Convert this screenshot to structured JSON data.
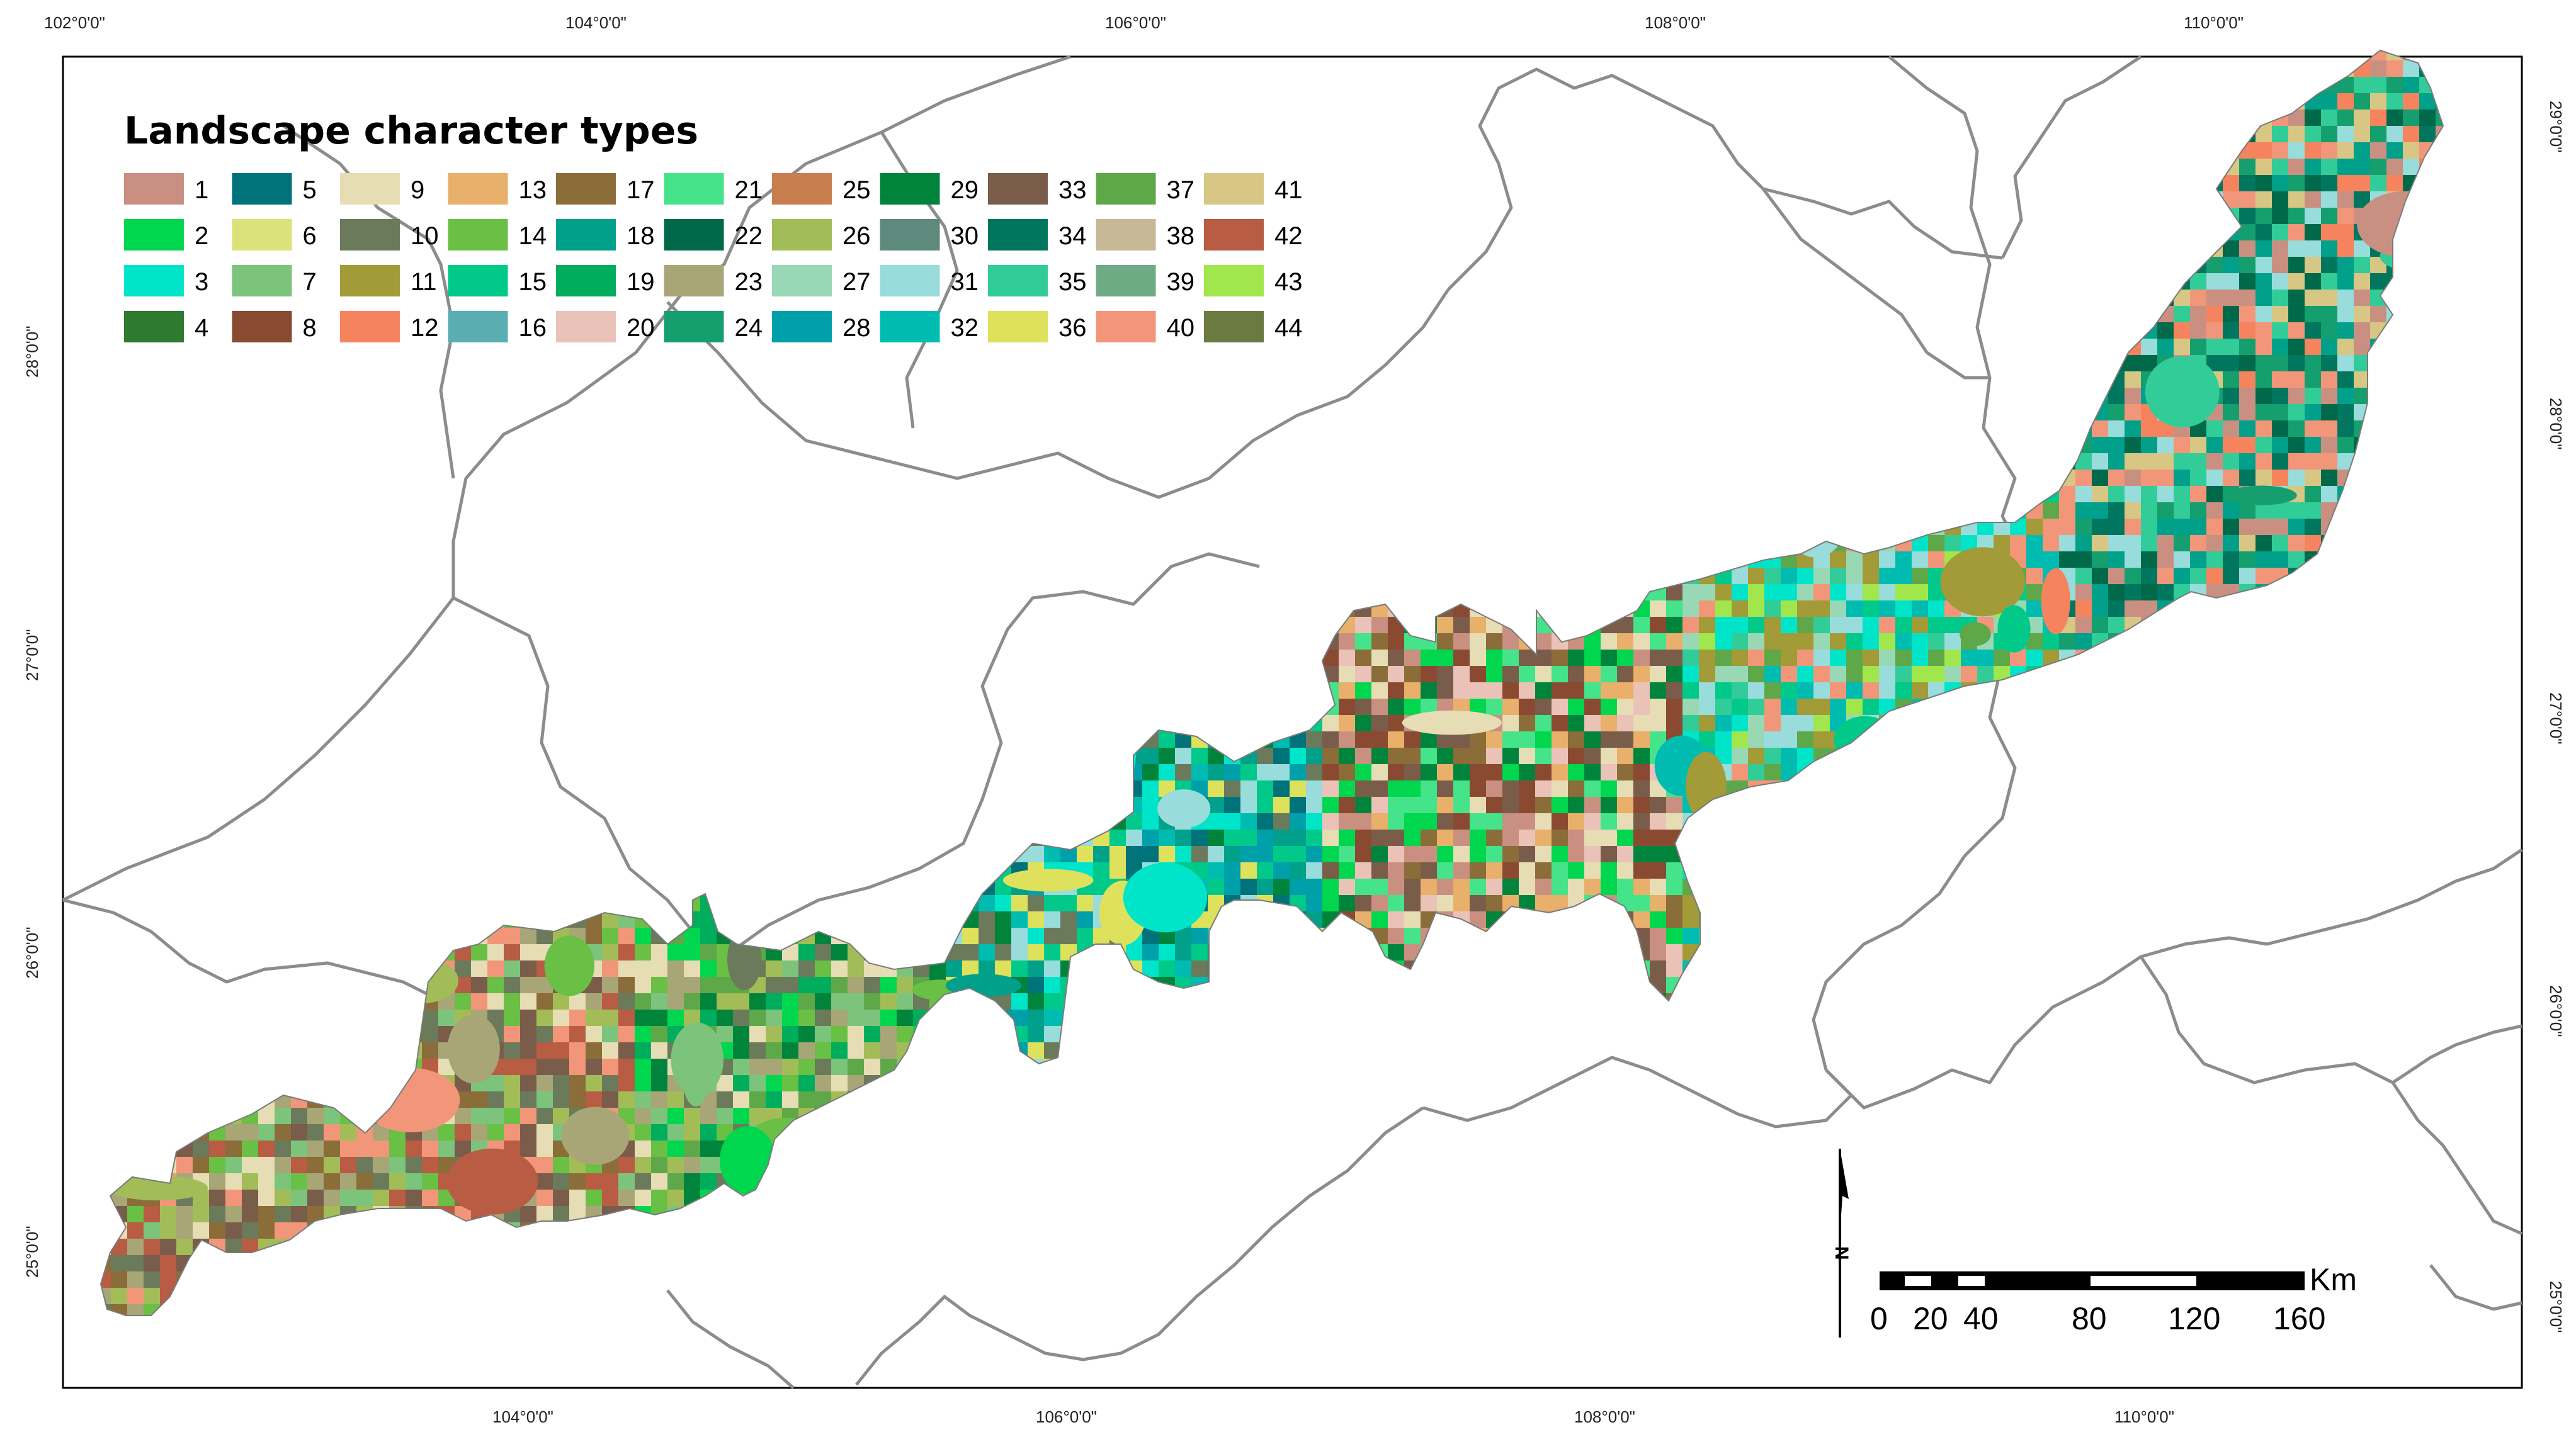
{
  "map": {
    "legend_title": "Landscape character types",
    "legend_items": [
      {
        "label": "1",
        "color": "#C99082"
      },
      {
        "label": "2",
        "color": "#00D64E"
      },
      {
        "label": "3",
        "color": "#00E5C9"
      },
      {
        "label": "4",
        "color": "#2E7A2E"
      },
      {
        "label": "5",
        "color": "#00727A"
      },
      {
        "label": "6",
        "color": "#DCE27A"
      },
      {
        "label": "7",
        "color": "#7CC47C"
      },
      {
        "label": "8",
        "color": "#8A4A32"
      },
      {
        "label": "9",
        "color": "#E6DDB5"
      },
      {
        "label": "10",
        "color": "#6B7A5A"
      },
      {
        "label": "11",
        "color": "#A39A38"
      },
      {
        "label": "12",
        "color": "#F5845E"
      },
      {
        "label": "13",
        "color": "#E8B06A"
      },
      {
        "label": "14",
        "color": "#6ABF45"
      },
      {
        "label": "15",
        "color": "#00C98A"
      },
      {
        "label": "16",
        "color": "#5AAEB2"
      },
      {
        "label": "17",
        "color": "#8A6D38"
      },
      {
        "label": "18",
        "color": "#00A08A"
      },
      {
        "label": "19",
        "color": "#00AD5C"
      },
      {
        "label": "20",
        "color": "#EBC2B8"
      },
      {
        "label": "21",
        "color": "#45E38A"
      },
      {
        "label": "22",
        "color": "#00694A"
      },
      {
        "label": "23",
        "color": "#A8A676"
      },
      {
        "label": "24",
        "color": "#159E6E"
      },
      {
        "label": "25",
        "color": "#C87E4E"
      },
      {
        "label": "26",
        "color": "#A2BD58"
      },
      {
        "label": "27",
        "color": "#98D8B4"
      },
      {
        "label": "28",
        "color": "#00A0AA"
      },
      {
        "label": "29",
        "color": "#00843C"
      },
      {
        "label": "30",
        "color": "#5E8A7E"
      },
      {
        "label": "31",
        "color": "#98DCDC"
      },
      {
        "label": "32",
        "color": "#00BCB0"
      },
      {
        "label": "33",
        "color": "#7A5C4A"
      },
      {
        "label": "34",
        "color": "#00765E"
      },
      {
        "label": "35",
        "color": "#32CC98"
      },
      {
        "label": "36",
        "color": "#DDE15C"
      },
      {
        "label": "37",
        "color": "#5EA84A"
      },
      {
        "label": "38",
        "color": "#C7B896"
      },
      {
        "label": "39",
        "color": "#6EAA84"
      },
      {
        "label": "40",
        "color": "#F2967A"
      },
      {
        "label": "41",
        "color": "#D8C684"
      },
      {
        "label": "42",
        "color": "#B85C44"
      },
      {
        "label": "43",
        "color": "#A2E64E"
      },
      {
        "label": "44",
        "color": "#6A7A40"
      }
    ],
    "coord_labels": {
      "top": [
        "102°0'0\"",
        "104°0'0\"",
        "106°0'0\"",
        "108°0'0\"",
        "110°0'0\""
      ],
      "bottom": [
        "104°0'0\"",
        "106°0'0\"",
        "108°0'0\"",
        "110°0'0\""
      ],
      "left": [
        "28°0'0\"",
        "27°0'0\"",
        "26°0'0\"",
        "25°0'0\""
      ],
      "right": [
        "29°0'0\"",
        "28°0'0\"",
        "27°0'0\"",
        "26°0'0\"",
        "25°0'0\""
      ]
    },
    "north_arrow_label": "N",
    "scale_bar": {
      "unit": "Km",
      "labels": [
        "0",
        "20",
        "40",
        "80",
        "120",
        "160"
      ]
    }
  }
}
